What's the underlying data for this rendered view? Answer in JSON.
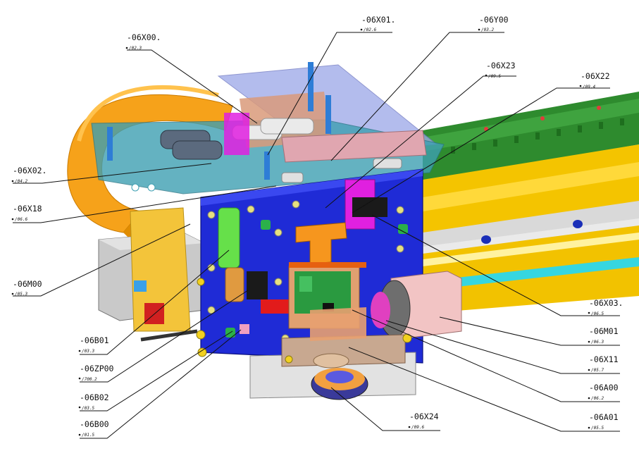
{
  "labels": [
    {
      "id": "x00",
      "code": "-06X00.",
      "ref": "/02.3"
    },
    {
      "id": "x01",
      "code": "-06X01.",
      "ref": "/02.6"
    },
    {
      "id": "y00",
      "code": "-06Y00",
      "ref": "/03.2"
    },
    {
      "id": "x23",
      "code": "-06X23",
      "ref": "/09.5"
    },
    {
      "id": "x22",
      "code": "-06X22",
      "ref": "/09.4"
    },
    {
      "id": "x02",
      "code": "-06X02.",
      "ref": "/04.2"
    },
    {
      "id": "x18",
      "code": "-06X18",
      "ref": "/06.6"
    },
    {
      "id": "m00",
      "code": "-06M00",
      "ref": "/05.3"
    },
    {
      "id": "b01",
      "code": "-06B01",
      "ref": "/03.3"
    },
    {
      "id": "zp00",
      "code": "-06ZP00",
      "ref": "/700.2"
    },
    {
      "id": "b02",
      "code": "-06B02",
      "ref": "/03.5"
    },
    {
      "id": "b00",
      "code": "-06B00",
      "ref": "/01.5"
    },
    {
      "id": "x24",
      "code": "-06X24",
      "ref": "/09.6"
    },
    {
      "id": "x03",
      "code": "-06X03.",
      "ref": "/06.5"
    },
    {
      "id": "m01",
      "code": "-06M01",
      "ref": "/06.3"
    },
    {
      "id": "x11",
      "code": "-06X11",
      "ref": "/05.7"
    },
    {
      "id": "a00",
      "code": "-06A00",
      "ref": "/06.2"
    },
    {
      "id": "a01",
      "code": "-06A01",
      "ref": "/05.5"
    }
  ]
}
